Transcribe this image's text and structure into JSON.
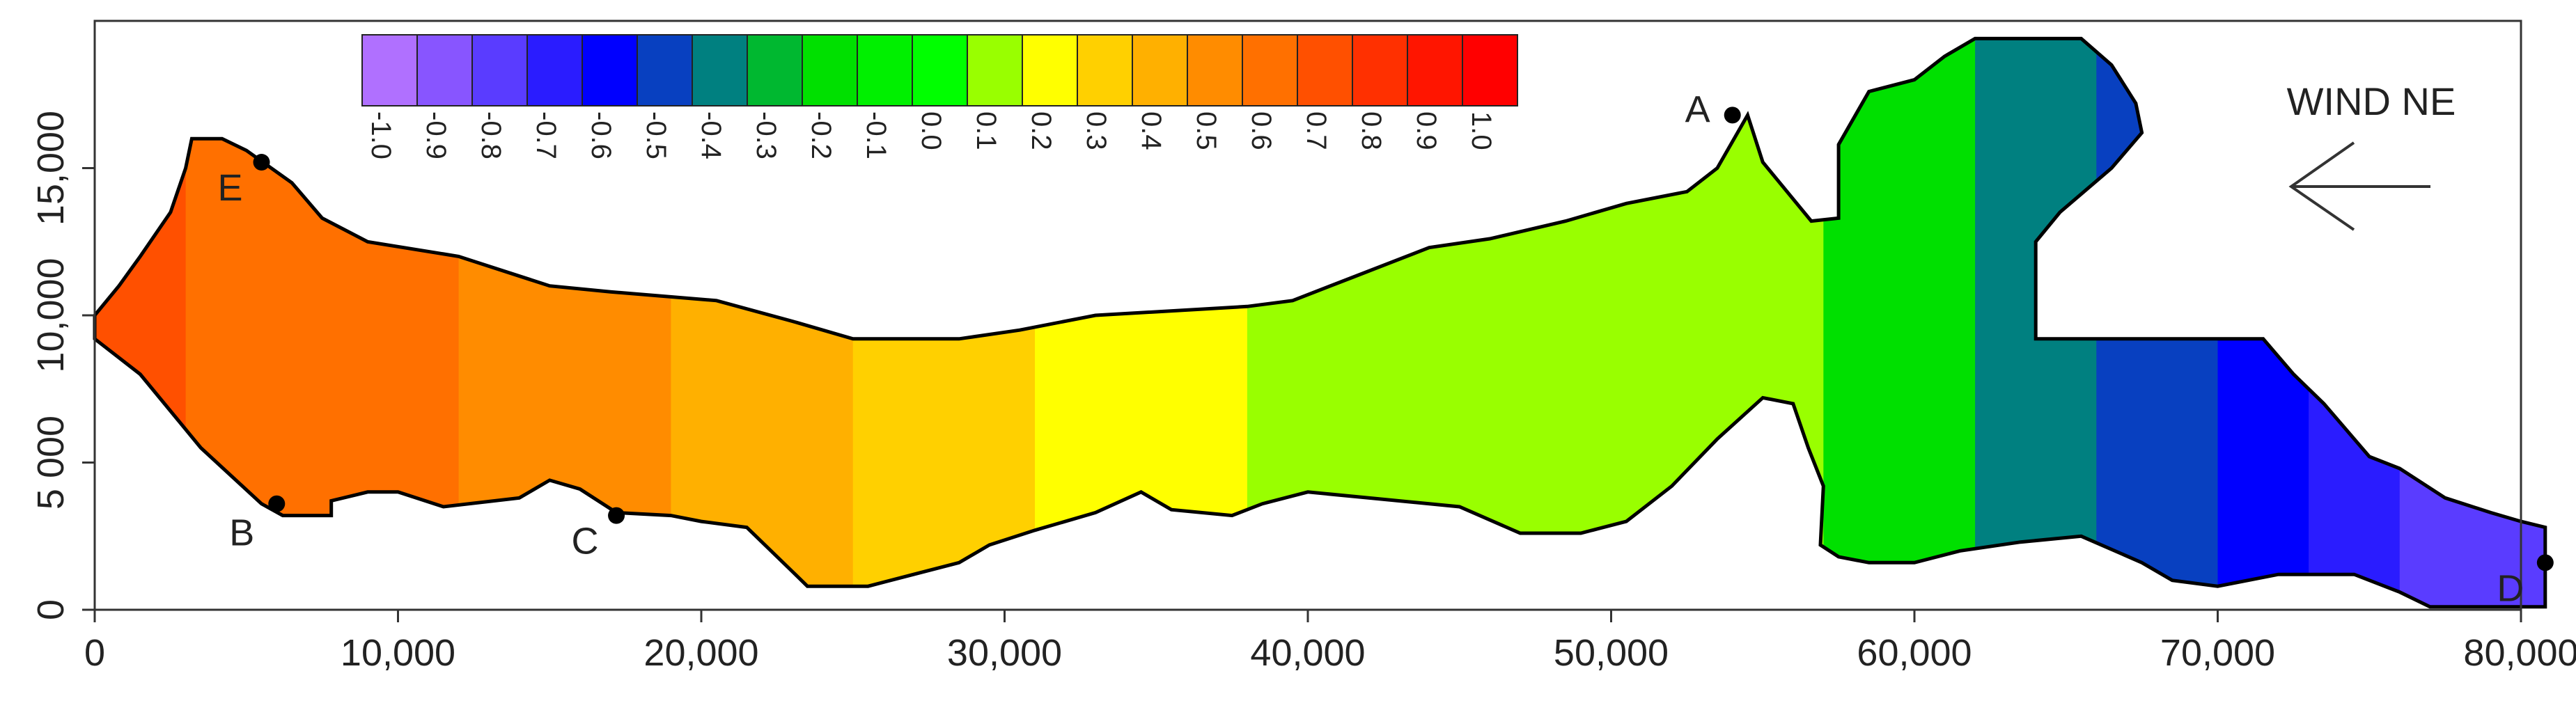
{
  "chart_data": {
    "type": "heatmap",
    "title": "",
    "xlabel": "",
    "ylabel": "",
    "xlim": [
      0,
      80000
    ],
    "ylim": [
      0,
      20000
    ],
    "x_ticks": [
      0,
      10000,
      20000,
      30000,
      40000,
      50000,
      60000,
      70000,
      80000
    ],
    "x_tick_labels": [
      "0",
      "10,000",
      "20,000",
      "30,000",
      "40,000",
      "50,000",
      "60,000",
      "70,000",
      "80,000"
    ],
    "y_ticks": [
      0,
      5000,
      10000,
      15000
    ],
    "y_tick_labels": [
      "0",
      "5 000",
      "10,000",
      "15,000"
    ],
    "colorbar": {
      "levels": [
        -1.0,
        -0.9,
        -0.8,
        -0.7,
        -0.6,
        -0.5,
        -0.4,
        -0.3,
        -0.2,
        -0.1,
        0.0,
        0.1,
        0.2,
        0.3,
        0.4,
        0.5,
        0.6,
        0.7,
        0.8,
        0.9,
        1.0
      ],
      "labels": [
        "-1.0",
        "-0.9",
        "-0.8",
        "-0.7",
        "-0.6",
        "-0.5",
        "-0.4",
        "-0.3",
        "-0.2",
        "-0.1",
        "0.0",
        "0.1",
        "0.2",
        "0.3",
        "0.4",
        "0.5",
        "0.6",
        "0.7",
        "0.8",
        "0.9",
        "1.0"
      ],
      "colors": [
        "#b070ff",
        "#8855ff",
        "#5a3cff",
        "#2a1cff",
        "#0000ff",
        "#0840c0",
        "#008080",
        "#00b830",
        "#00e000",
        "#00f000",
        "#00ff00",
        "#99ff00",
        "#ffff00",
        "#ffd000",
        "#ffb000",
        "#ff8c00",
        "#ff7000",
        "#ff5000",
        "#ff3000",
        "#ff1500",
        "#ff0000"
      ]
    },
    "contour_bands": [
      {
        "value": 0.7,
        "x_range": [
          0,
          3000
        ]
      },
      {
        "value": 0.6,
        "x_range": [
          3000,
          12000
        ]
      },
      {
        "value": 0.5,
        "x_range": [
          12000,
          19000
        ]
      },
      {
        "value": 0.4,
        "x_range": [
          19000,
          25000
        ]
      },
      {
        "value": 0.3,
        "x_range": [
          25000,
          31000
        ]
      },
      {
        "value": 0.2,
        "x_range": [
          31000,
          38000
        ]
      },
      {
        "value": 0.1,
        "x_range": [
          38000,
          57000
        ]
      },
      {
        "value": -0.2,
        "x_range": [
          57000,
          62000
        ]
      },
      {
        "value": -0.4,
        "x_range": [
          62000,
          66000
        ]
      },
      {
        "value": -0.5,
        "x_range": [
          66000,
          70000
        ]
      },
      {
        "value": -0.6,
        "x_range": [
          70000,
          73000
        ]
      },
      {
        "value": -0.7,
        "x_range": [
          73000,
          76000
        ]
      },
      {
        "value": -0.8,
        "x_range": [
          76000,
          81000
        ]
      }
    ],
    "points": [
      {
        "label": "A",
        "x": 54000,
        "y": 16800
      },
      {
        "label": "B",
        "x": 6000,
        "y": 3600
      },
      {
        "label": "C",
        "x": 17200,
        "y": 3200
      },
      {
        "label": "D",
        "x": 80800,
        "y": 1600
      },
      {
        "label": "E",
        "x": 5500,
        "y": 15200
      }
    ],
    "annotation": "WIND NE",
    "wind_arrow_direction": "west"
  }
}
